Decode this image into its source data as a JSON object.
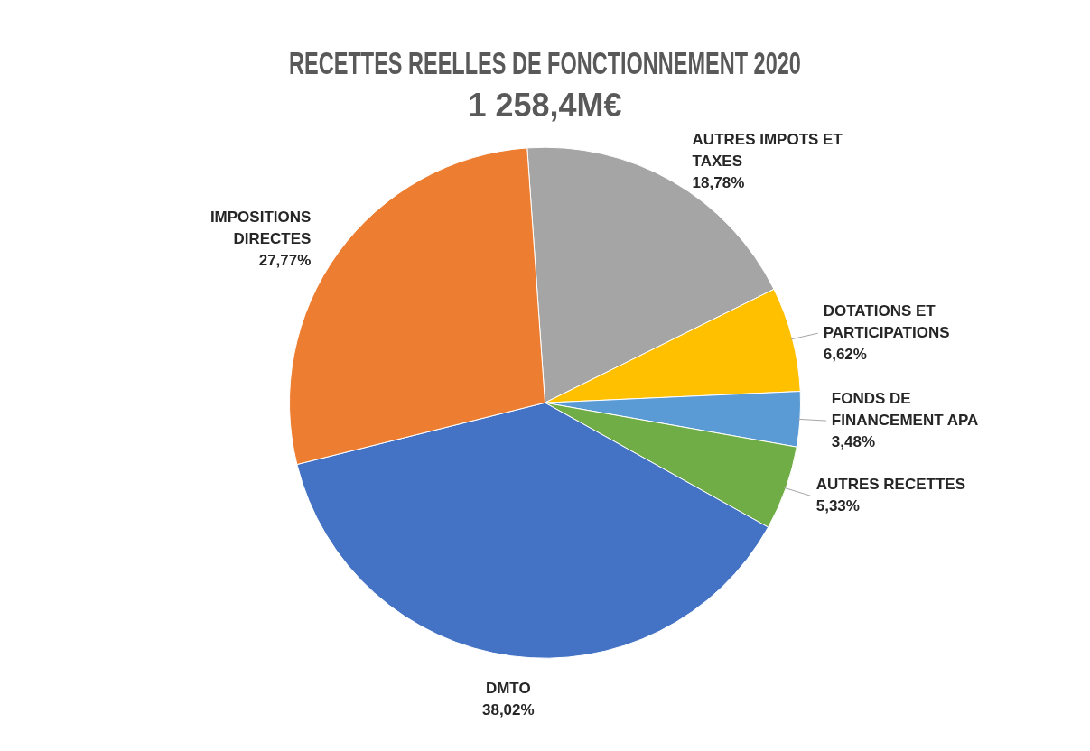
{
  "chart_data": {
    "type": "pie",
    "title": "RECETTES REELLES DE FONCTIONNEMENT 2020",
    "subtitle": "1 258,4M€",
    "categories": [
      "AUTRES IMPOTS ET TAXES",
      "DOTATIONS ET PARTICIPATIONS",
      "FONDS DE FINANCEMENT APA",
      "AUTRES RECETTES",
      "DMTO",
      "IMPOSITIONS DIRECTES"
    ],
    "values": [
      18.78,
      6.62,
      3.48,
      5.33,
      38.02,
      27.77
    ],
    "colors": [
      "#a5a5a5",
      "#ffc000",
      "#5b9bd5",
      "#70ad47",
      "#4472c4",
      "#ed7d31"
    ],
    "value_labels": [
      "18,78%",
      "6,62%",
      "3,48%",
      "5,33%",
      "38,02%",
      "27,77%"
    ],
    "legend": false
  }
}
